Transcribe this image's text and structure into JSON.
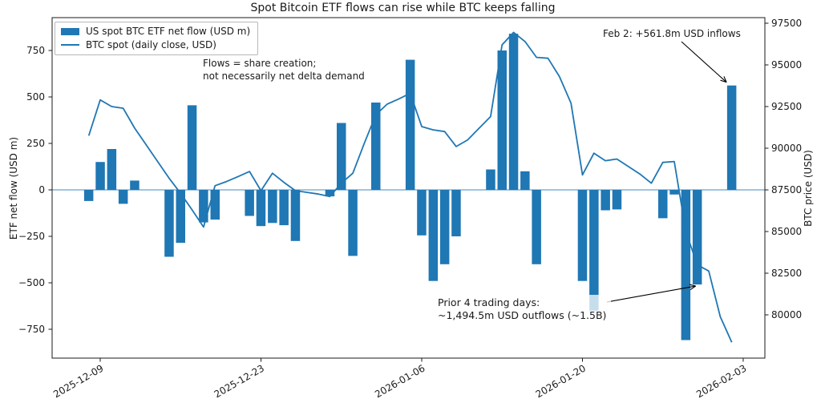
{
  "colors": {
    "accent": "#1f77b4",
    "axis": "#1a1a1a"
  },
  "legend": {
    "bar_label": "US spot BTC ETF net flow (USD m)",
    "line_label": "BTC spot (daily close, USD)"
  },
  "annotations": {
    "flows_note": {
      "line1": "Flows = share creation;",
      "line2": "not necessarily net delta demand"
    },
    "feb2": {
      "text": "Feb 2: +561.8m USD inflows"
    },
    "prior4": {
      "line1": "Prior 4 trading days:",
      "line2": "~1,494.5m USD outflows (~1.5B)"
    }
  },
  "left_axis": {
    "label": "ETF net flow (USD m)",
    "ticks": [
      750,
      500,
      250,
      0,
      -250,
      -500,
      -750
    ]
  },
  "right_axis": {
    "label": "BTC price (USD)",
    "ticks": [
      97500,
      95000,
      92500,
      90000,
      87500,
      85000,
      82500,
      80000
    ]
  },
  "x_axis": {
    "tick_labels": [
      "2025-12-09",
      "2025-12-23",
      "2026-01-06",
      "2026-01-20",
      "2026-02-03"
    ]
  },
  "chart_data": {
    "type": "bar+line (dual axis)",
    "title": "Spot Bitcoin ETF flows can rise while BTC keeps falling",
    "xlabel": "",
    "left_ylabel": "ETF net flow (USD m)",
    "right_ylabel": "BTC price (USD)",
    "left_ylim": [
      -905,
      927
    ],
    "right_ylim": [
      77400,
      97840
    ],
    "x_ticks": [
      "2025-12-09",
      "2025-12-23",
      "2026-01-06",
      "2026-01-20",
      "2026-02-03"
    ],
    "grid": false,
    "legend_position": "upper left",
    "bar_series": {
      "name": "US spot BTC ETF net flow (USD m)",
      "axis": "left",
      "units": "USD millions",
      "points": [
        [
          "2025-12-08",
          -60
        ],
        [
          "2025-12-09",
          150
        ],
        [
          "2025-12-10",
          220
        ],
        [
          "2025-12-11",
          -75
        ],
        [
          "2025-12-12",
          50
        ],
        [
          "2025-12-15",
          -360
        ],
        [
          "2025-12-16",
          -285
        ],
        [
          "2025-12-17",
          455
        ],
        [
          "2025-12-18",
          -175
        ],
        [
          "2025-12-19",
          -160
        ],
        [
          "2025-12-22",
          -140
        ],
        [
          "2025-12-23",
          -195
        ],
        [
          "2025-12-24",
          -178
        ],
        [
          "2025-12-25",
          -190
        ],
        [
          "2025-12-26",
          -275
        ],
        [
          "2025-12-29",
          -35
        ],
        [
          "2025-12-30",
          360
        ],
        [
          "2025-12-31",
          -355
        ],
        [
          "2026-01-02",
          470
        ],
        [
          "2026-01-05",
          700
        ],
        [
          "2026-01-06",
          -245
        ],
        [
          "2026-01-07",
          -490
        ],
        [
          "2026-01-08",
          -400
        ],
        [
          "2026-01-09",
          -250
        ],
        [
          "2026-01-12",
          110
        ],
        [
          "2026-01-13",
          750
        ],
        [
          "2026-01-14",
          840
        ],
        [
          "2026-01-15",
          100
        ],
        [
          "2026-01-16",
          -400
        ],
        [
          "2026-01-20",
          -490
        ],
        [
          "2026-01-21",
          -650
        ],
        [
          "2026-01-22",
          -110
        ],
        [
          "2026-01-23",
          -105
        ],
        [
          "2026-01-27",
          -152.5
        ],
        [
          "2026-01-28",
          -24.8
        ],
        [
          "2026-01-29",
          -808.3
        ],
        [
          "2026-01-30",
          -508.9
        ],
        [
          "2026-02-02",
          561.8
        ]
      ]
    },
    "line_series": {
      "name": "BTC spot (daily close, USD)",
      "axis": "right",
      "units": "USD",
      "points": [
        [
          "2025-12-08",
          90750
        ],
        [
          "2025-12-09",
          92900
        ],
        [
          "2025-12-10",
          92500
        ],
        [
          "2025-12-11",
          92400
        ],
        [
          "2025-12-12",
          91200
        ],
        [
          "2025-12-13",
          90200
        ],
        [
          "2025-12-14",
          89200
        ],
        [
          "2025-12-15",
          88200
        ],
        [
          "2025-12-16",
          87300
        ],
        [
          "2025-12-17",
          86300
        ],
        [
          "2025-12-18",
          85270
        ],
        [
          "2025-12-19",
          87750
        ],
        [
          "2025-12-20",
          88000
        ],
        [
          "2025-12-21",
          88300
        ],
        [
          "2025-12-22",
          88600
        ],
        [
          "2025-12-23",
          87450
        ],
        [
          "2025-12-24",
          88500
        ],
        [
          "2025-12-25",
          87950
        ],
        [
          "2025-12-26",
          87450
        ],
        [
          "2025-12-27",
          87350
        ],
        [
          "2025-12-28",
          87250
        ],
        [
          "2025-12-29",
          87100
        ],
        [
          "2025-12-30",
          87900
        ],
        [
          "2025-12-31",
          88500
        ],
        [
          "2026-01-01",
          90300
        ],
        [
          "2026-01-02",
          92000
        ],
        [
          "2026-01-03",
          92650
        ],
        [
          "2026-01-04",
          92950
        ],
        [
          "2026-01-05",
          93300
        ],
        [
          "2026-01-06",
          91300
        ],
        [
          "2026-01-07",
          91100
        ],
        [
          "2026-01-08",
          91000
        ],
        [
          "2026-01-09",
          90100
        ],
        [
          "2026-01-10",
          90500
        ],
        [
          "2026-01-11",
          91200
        ],
        [
          "2026-01-12",
          91900
        ],
        [
          "2026-01-13",
          96200
        ],
        [
          "2026-01-14",
          96950
        ],
        [
          "2026-01-15",
          96400
        ],
        [
          "2026-01-16",
          95450
        ],
        [
          "2026-01-17",
          95400
        ],
        [
          "2026-01-18",
          94300
        ],
        [
          "2026-01-19",
          92700
        ],
        [
          "2026-01-20",
          88400
        ],
        [
          "2026-01-21",
          89700
        ],
        [
          "2026-01-22",
          89250
        ],
        [
          "2026-01-23",
          89350
        ],
        [
          "2026-01-24",
          88900
        ],
        [
          "2026-01-25",
          88450
        ],
        [
          "2026-01-26",
          87900
        ],
        [
          "2026-01-27",
          89150
        ],
        [
          "2026-01-28",
          89200
        ],
        [
          "2026-01-29",
          85000
        ],
        [
          "2026-01-30",
          83000
        ],
        [
          "2026-01-31",
          82630
        ],
        [
          "2026-02-01",
          79900
        ],
        [
          "2026-02-02",
          78350
        ]
      ]
    }
  }
}
